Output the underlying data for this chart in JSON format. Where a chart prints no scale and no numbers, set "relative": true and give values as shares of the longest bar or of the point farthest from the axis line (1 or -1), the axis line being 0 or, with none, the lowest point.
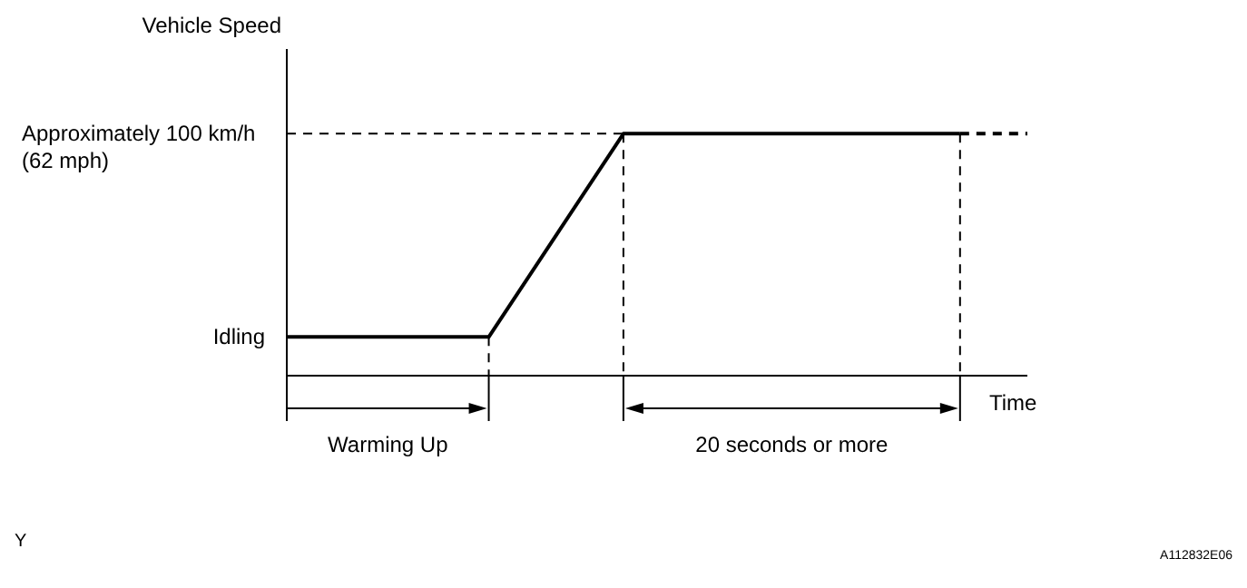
{
  "chart_data": {
    "type": "line",
    "relative": true,
    "ylabel": "Vehicle Speed",
    "xlabel": "Time",
    "categories": [
      null,
      null,
      null,
      null,
      null,
      null,
      null,
      null,
      null,
      null,
      null,
      null
    ],
    "series": [
      {
        "color": "#000000",
        "values": [
          0.16,
          0.16,
          0.16,
          0.16,
          0.58,
          1,
          1,
          1,
          1,
          1,
          1,
          null
        ],
        "line_style": "solid"
      },
      {
        "color": "#000000",
        "values": [
          null,
          null,
          null,
          null,
          null,
          null,
          null,
          null,
          null,
          null,
          1,
          1
        ],
        "line_style": "dashed"
      }
    ],
    "ref_lines": [
      {
        "axis": "y",
        "value": 1,
        "line_style": "dashed",
        "color": "#000000"
      }
    ],
    "annotations": [
      "Idling",
      "Approximately 100 km/h\n(62 mph)",
      "Warming Up",
      "20 seconds or more",
      "Y",
      "A112832E06"
    ]
  }
}
